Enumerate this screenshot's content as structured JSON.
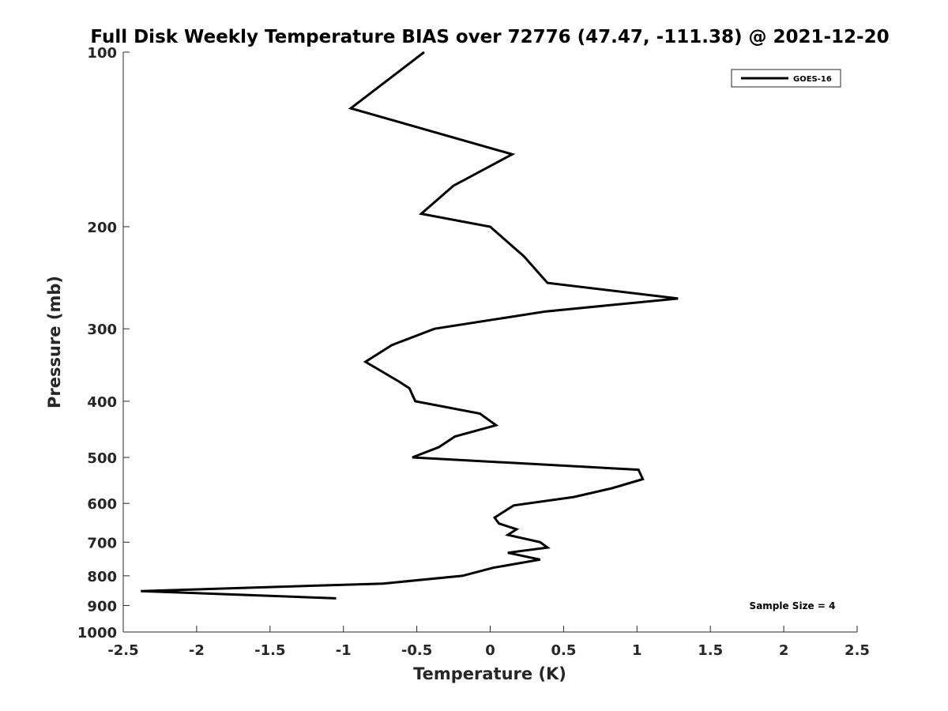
{
  "chart_data": {
    "type": "line",
    "title": "Full Disk Weekly Temperature BIAS over 72776 (47.47, -111.38) @ 2021-12-20",
    "xlabel": "Temperature (K)",
    "ylabel": "Pressure (mb)",
    "xlim": [
      -2.5,
      2.5
    ],
    "ylim": [
      100,
      1000
    ],
    "y_scale": "log",
    "y_reversed": true,
    "grid": false,
    "legend_position": "top-right",
    "x_ticks": [
      -2.5,
      -2,
      -1.5,
      -1,
      -0.5,
      0,
      0.5,
      1,
      1.5,
      2,
      2.5
    ],
    "x_tick_labels": [
      "-2.5",
      "-2",
      "-1.5",
      "-1",
      "-0.5",
      "0",
      "0.5",
      "1",
      "1.5",
      "2",
      "2.5"
    ],
    "y_ticks": [
      100,
      200,
      300,
      400,
      500,
      600,
      700,
      800,
      900,
      1000
    ],
    "y_tick_labels": [
      "100",
      "200",
      "300",
      "400",
      "500",
      "600",
      "700",
      "800",
      "900",
      "1000"
    ],
    "series": [
      {
        "name": "GOES-16",
        "color": "#000000",
        "points": [
          {
            "x": -0.45,
            "p": 100
          },
          {
            "x": -0.95,
            "p": 125
          },
          {
            "x": 0.15,
            "p": 150
          },
          {
            "x": -0.25,
            "p": 170
          },
          {
            "x": -0.47,
            "p": 190
          },
          {
            "x": 0.0,
            "p": 200
          },
          {
            "x": 0.23,
            "p": 225
          },
          {
            "x": 0.39,
            "p": 250
          },
          {
            "x": 1.28,
            "p": 266
          },
          {
            "x": 0.38,
            "p": 280
          },
          {
            "x": -0.38,
            "p": 300
          },
          {
            "x": -0.67,
            "p": 320
          },
          {
            "x": -0.85,
            "p": 342
          },
          {
            "x": -0.62,
            "p": 370
          },
          {
            "x": -0.55,
            "p": 380
          },
          {
            "x": -0.51,
            "p": 400
          },
          {
            "x": -0.07,
            "p": 420
          },
          {
            "x": 0.04,
            "p": 440
          },
          {
            "x": -0.24,
            "p": 460
          },
          {
            "x": -0.35,
            "p": 480
          },
          {
            "x": -0.53,
            "p": 500
          },
          {
            "x": 1.01,
            "p": 525
          },
          {
            "x": 1.04,
            "p": 545
          },
          {
            "x": 0.83,
            "p": 565
          },
          {
            "x": 0.57,
            "p": 585
          },
          {
            "x": 0.16,
            "p": 605
          },
          {
            "x": 0.03,
            "p": 635
          },
          {
            "x": 0.06,
            "p": 650
          },
          {
            "x": 0.18,
            "p": 665
          },
          {
            "x": 0.12,
            "p": 680
          },
          {
            "x": 0.34,
            "p": 700
          },
          {
            "x": 0.39,
            "p": 715
          },
          {
            "x": 0.12,
            "p": 730
          },
          {
            "x": 0.34,
            "p": 750
          },
          {
            "x": 0.02,
            "p": 775
          },
          {
            "x": -0.19,
            "p": 800
          },
          {
            "x": -0.73,
            "p": 825
          },
          {
            "x": -2.38,
            "p": 850
          },
          {
            "x": -1.05,
            "p": 875
          }
        ]
      }
    ],
    "annotations": [
      {
        "text": "Sample Size = 4",
        "position": "bottom-right"
      }
    ]
  }
}
